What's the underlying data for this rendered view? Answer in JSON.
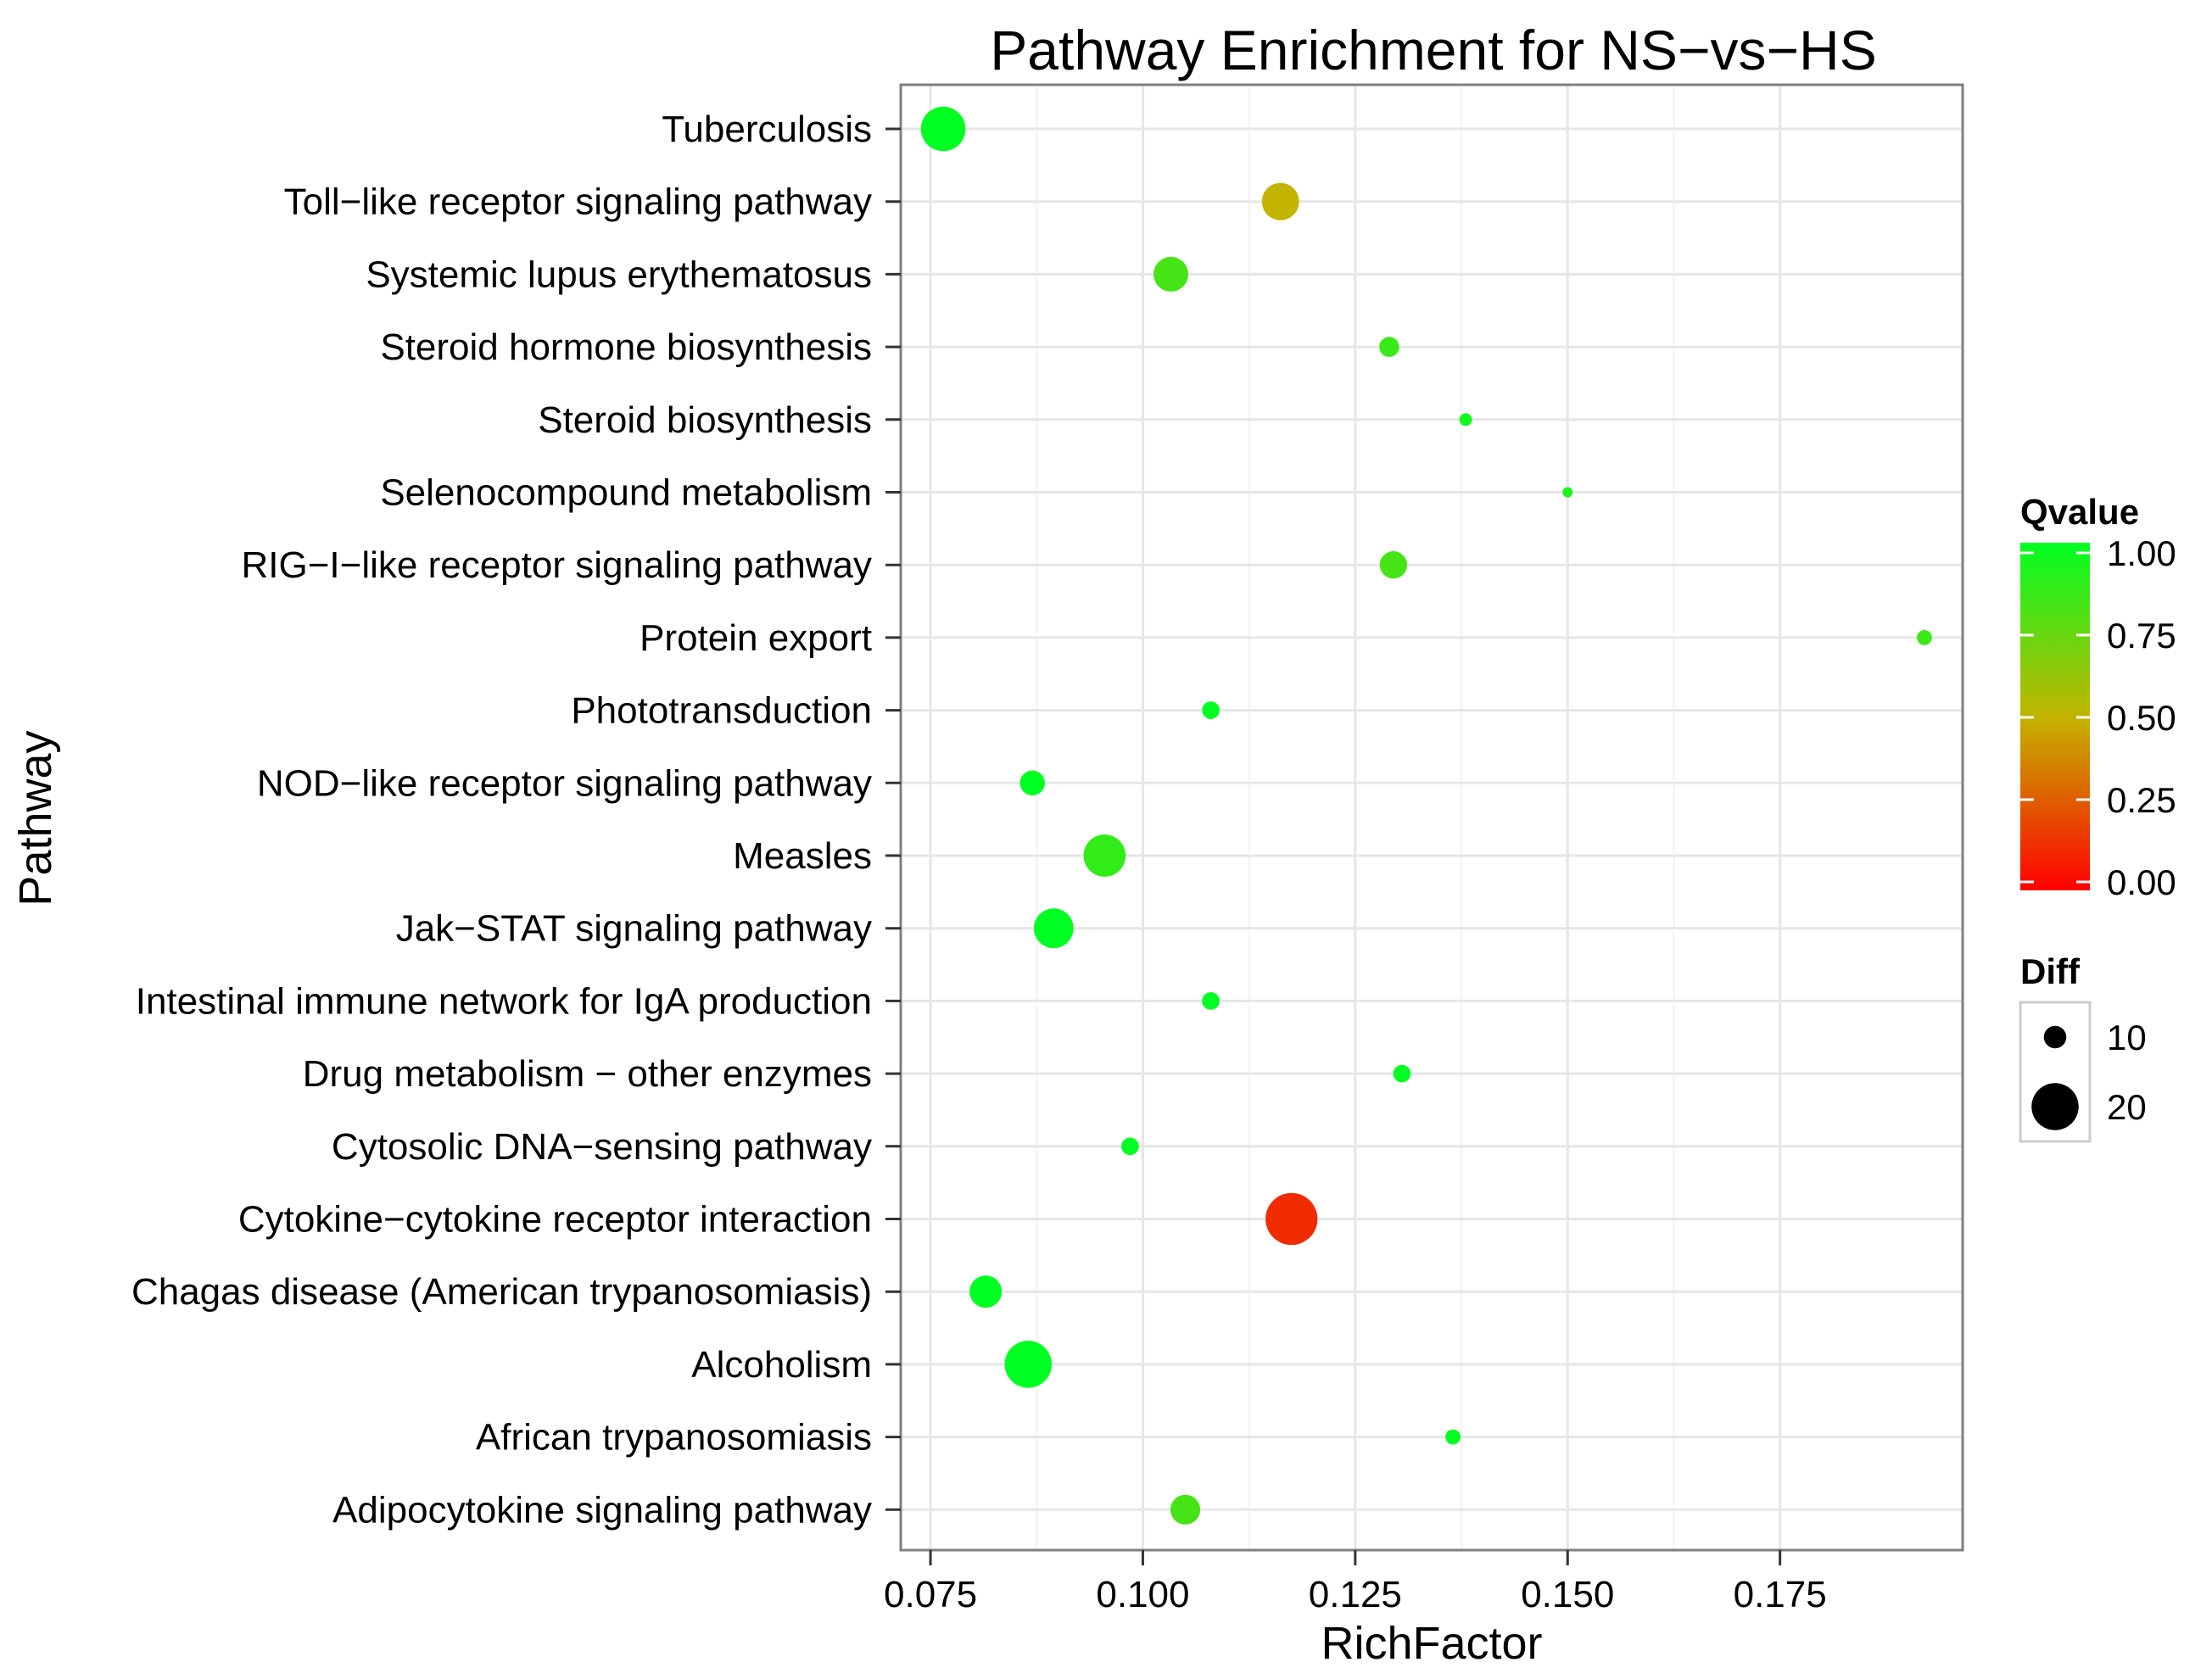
{
  "chart_data": {
    "type": "scatter",
    "title": "Pathway Enrichment for NS−vs−HS",
    "xlabel": "RichFactor",
    "ylabel": "Pathway",
    "xlim": [
      0.0715,
      0.1965
    ],
    "xticks": [
      0.075,
      0.1,
      0.125,
      0.15,
      0.175
    ],
    "xtick_labels": [
      "0.075",
      "0.100",
      "0.125",
      "0.150",
      "0.175"
    ],
    "grid": true,
    "legend_position": "right",
    "color_legend": {
      "title": "Qvalue",
      "range": [
        0,
        1
      ],
      "ticks": [
        1.0,
        0.75,
        0.5,
        0.25,
        0.0
      ],
      "tick_labels": [
        "1.00",
        "0.75",
        "0.50",
        "0.25",
        "0.00"
      ],
      "low_color": "#ff0000",
      "mid_color": "#c2b400",
      "high_color": "#00ff22"
    },
    "size_legend": {
      "title": "Diff",
      "values": [
        10,
        20
      ],
      "labels": [
        "10",
        "20"
      ]
    },
    "points": [
      {
        "pathway": "Tuberculosis",
        "richfactor": 0.0765,
        "qvalue": 1.0,
        "diff": 19
      },
      {
        "pathway": "Toll−like receptor signaling pathway",
        "richfactor": 0.1162,
        "qvalue": 0.5,
        "diff": 16
      },
      {
        "pathway": "Systemic lupus erythematosus",
        "richfactor": 0.1033,
        "qvalue": 0.82,
        "diff": 15
      },
      {
        "pathway": "Steroid hormone biosynthesis",
        "richfactor": 0.129,
        "qvalue": 0.85,
        "diff": 9
      },
      {
        "pathway": "Steroid biosynthesis",
        "richfactor": 0.138,
        "qvalue": 0.95,
        "diff": 6
      },
      {
        "pathway": "Selenocompound metabolism",
        "richfactor": 0.15,
        "qvalue": 0.92,
        "diff": 5
      },
      {
        "pathway": "RIG−I−like receptor signaling pathway",
        "richfactor": 0.1295,
        "qvalue": 0.82,
        "diff": 12
      },
      {
        "pathway": "Protein export",
        "richfactor": 0.192,
        "qvalue": 0.85,
        "diff": 7
      },
      {
        "pathway": "Phototransduction",
        "richfactor": 0.108,
        "qvalue": 1.0,
        "diff": 8
      },
      {
        "pathway": "NOD−like receptor signaling pathway",
        "richfactor": 0.087,
        "qvalue": 1.0,
        "diff": 11
      },
      {
        "pathway": "Measles",
        "richfactor": 0.0955,
        "qvalue": 0.87,
        "diff": 18
      },
      {
        "pathway": "Jak−STAT signaling pathway",
        "richfactor": 0.0895,
        "qvalue": 1.0,
        "diff": 17
      },
      {
        "pathway": "Intestinal immune network for IgA production",
        "richfactor": 0.108,
        "qvalue": 1.0,
        "diff": 8
      },
      {
        "pathway": "Drug metabolism − other enzymes",
        "richfactor": 0.1305,
        "qvalue": 1.0,
        "diff": 8
      },
      {
        "pathway": "Cytosolic DNA−sensing pathway",
        "richfactor": 0.0985,
        "qvalue": 1.0,
        "diff": 8
      },
      {
        "pathway": "Cytokine−cytokine receptor interaction",
        "richfactor": 0.1175,
        "qvalue": 0.12,
        "diff": 22
      },
      {
        "pathway": "Chagas disease (American trypanosomiasis)",
        "richfactor": 0.0815,
        "qvalue": 1.0,
        "diff": 14
      },
      {
        "pathway": "Alcoholism",
        "richfactor": 0.0865,
        "qvalue": 1.0,
        "diff": 20
      },
      {
        "pathway": "African trypanosomiasis",
        "richfactor": 0.1365,
        "qvalue": 1.0,
        "diff": 7
      },
      {
        "pathway": "Adipocytokine signaling pathway",
        "richfactor": 0.105,
        "qvalue": 0.82,
        "diff": 13
      }
    ]
  }
}
